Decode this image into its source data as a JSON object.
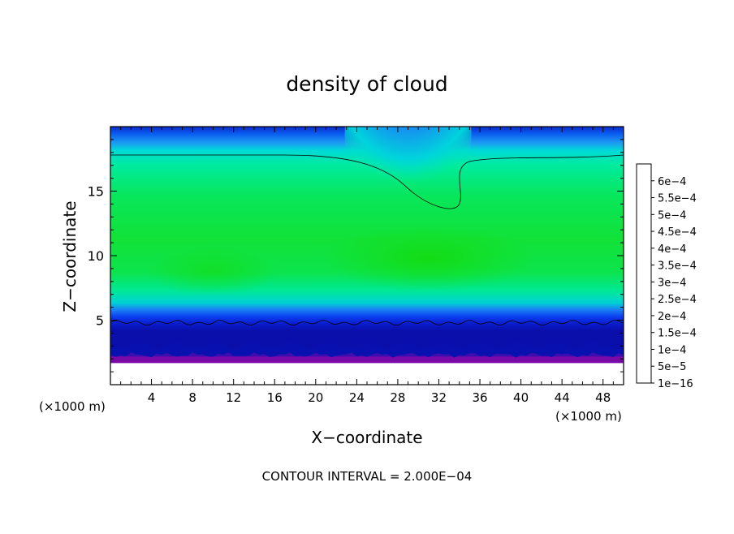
{
  "chart_data": {
    "type": "heatmap",
    "title": "density of cloud",
    "xlabel": "X−coordinate",
    "ylabel": "Z−coordinate",
    "x_unit_label_left": "(×1000 m)",
    "x_unit_label_right": "(×1000 m)",
    "xlim": [
      0,
      50
    ],
    "ylim": [
      0,
      20
    ],
    "x_ticks": [
      4,
      8,
      12,
      16,
      20,
      24,
      28,
      32,
      36,
      40,
      44,
      48
    ],
    "x_tick_labels": [
      "4",
      "8",
      "12",
      "16",
      "20",
      "24",
      "28",
      "32",
      "36",
      "40",
      "44",
      "48"
    ],
    "y_ticks": [
      5,
      10,
      15
    ],
    "y_tick_labels": [
      "5",
      "10",
      "15"
    ],
    "contour_interval_text": "CONTOUR INTERVAL = 2.000E−04",
    "colorbar": {
      "labels": [
        "1e−16",
        "5e−5",
        "1e−4",
        "1.5e−4",
        "2e−4",
        "2.5e−4",
        "3e−4",
        "3.5e−4",
        "4e−4",
        "4.5e−4",
        "5e−4",
        "5.5e−4",
        "6e−4"
      ],
      "values": [
        1e-16,
        5e-05,
        0.0001,
        0.00015,
        0.0002,
        0.00025,
        0.0003,
        0.00035,
        0.0004,
        0.00045,
        0.0005,
        0.00055,
        0.0006
      ],
      "colors": [
        "#7a0aa8",
        "#0a1acc",
        "#0a3df0",
        "#1a7cf6",
        "#00d6e0",
        "#00e89a",
        "#12e63a",
        "#7ee81a",
        "#d8f000",
        "#ffbf00",
        "#ff7000",
        "#ff3000",
        "#ff8a8a"
      ]
    },
    "field_description_visible": {
      "cloud_base_z": 1.8,
      "lower_contour_z": 4.8,
      "upper_contour_z": 17.8,
      "dip_center_x": 33.5,
      "dip_min_z": 13.5,
      "max_value_approx": 0.00031
    }
  }
}
